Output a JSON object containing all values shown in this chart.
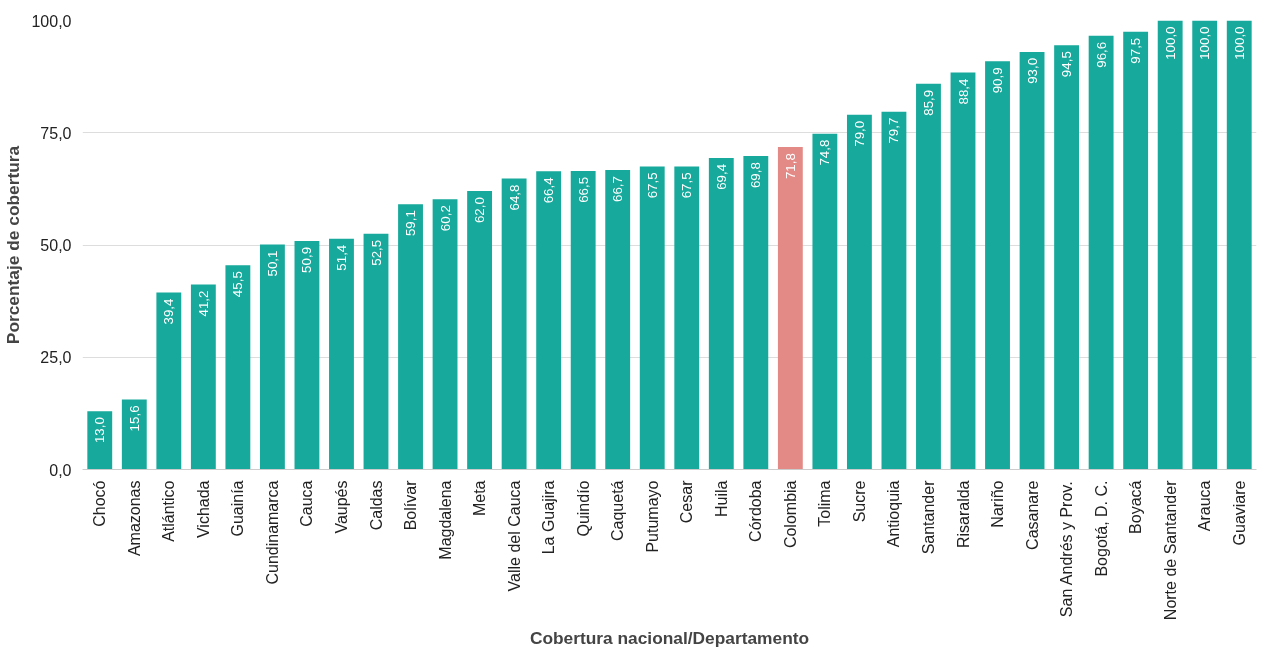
{
  "chart_data": {
    "type": "bar",
    "xlabel": "Cobertura nacional/Departamento",
    "ylabel": "Porcentaje de cobertura",
    "categories": [
      "Chocó",
      "Amazonas",
      "Atlántico",
      "Vichada",
      "Guainía",
      "Cundinamarca",
      "Cauca",
      "Vaupés",
      "Caldas",
      "Bolívar",
      "Magdalena",
      "Meta",
      "Valle del Cauca",
      "La Guajira",
      "Quindío",
      "Caquetá",
      "Putumayo",
      "Cesar",
      "Huila",
      "Córdoba",
      "Colombia",
      "Tolima",
      "Sucre",
      "Antioquia",
      "Santander",
      "Risaralda",
      "Nariño",
      "Casanare",
      "San Andrés y Prov.",
      "Bogotá, D. C.",
      "Boyacá",
      "Norte de Santander",
      "Arauca",
      "Guaviare"
    ],
    "values": [
      13.0,
      15.6,
      39.4,
      41.2,
      45.5,
      50.1,
      50.9,
      51.4,
      52.5,
      59.1,
      60.2,
      62.0,
      64.8,
      66.4,
      66.5,
      66.7,
      67.5,
      67.5,
      69.4,
      69.8,
      71.8,
      74.8,
      79.0,
      79.7,
      85.9,
      88.4,
      90.9,
      93.0,
      94.5,
      96.6,
      97.5,
      100.0,
      100.0,
      100.0
    ],
    "value_labels": [
      "13,0",
      "15,6",
      "39,4",
      "41,2",
      "45,5",
      "50,1",
      "50,9",
      "51,4",
      "52,5",
      "59,1",
      "60,2",
      "62,0",
      "64,8",
      "66,4",
      "66,5",
      "66,7",
      "67,5",
      "67,5",
      "69,4",
      "69,8",
      "71,8",
      "74,8",
      "79,0",
      "79,7",
      "85,9",
      "88,4",
      "90,9",
      "93,0",
      "94,5",
      "96,6",
      "97,5",
      "100,0",
      "100,0",
      "100,0"
    ],
    "colors": [
      "#17a99b",
      "#17a99b",
      "#17a99b",
      "#17a99b",
      "#17a99b",
      "#17a99b",
      "#17a99b",
      "#17a99b",
      "#17a99b",
      "#17a99b",
      "#17a99b",
      "#17a99b",
      "#17a99b",
      "#17a99b",
      "#17a99b",
      "#17a99b",
      "#17a99b",
      "#17a99b",
      "#17a99b",
      "#17a99b",
      "#e38a86",
      "#17a99b",
      "#17a99b",
      "#17a99b",
      "#17a99b",
      "#17a99b",
      "#17a99b",
      "#17a99b",
      "#17a99b",
      "#17a99b",
      "#17a99b",
      "#17a99b",
      "#17a99b",
      "#17a99b"
    ],
    "ylim": [
      0,
      100
    ],
    "yticks": [
      {
        "value": 0,
        "label": "0,0"
      },
      {
        "value": 25,
        "label": "25,0"
      },
      {
        "value": 50,
        "label": "50,0"
      },
      {
        "value": 75,
        "label": "75,0"
      },
      {
        "value": 100,
        "label": "100,0"
      }
    ],
    "grid": "y"
  }
}
